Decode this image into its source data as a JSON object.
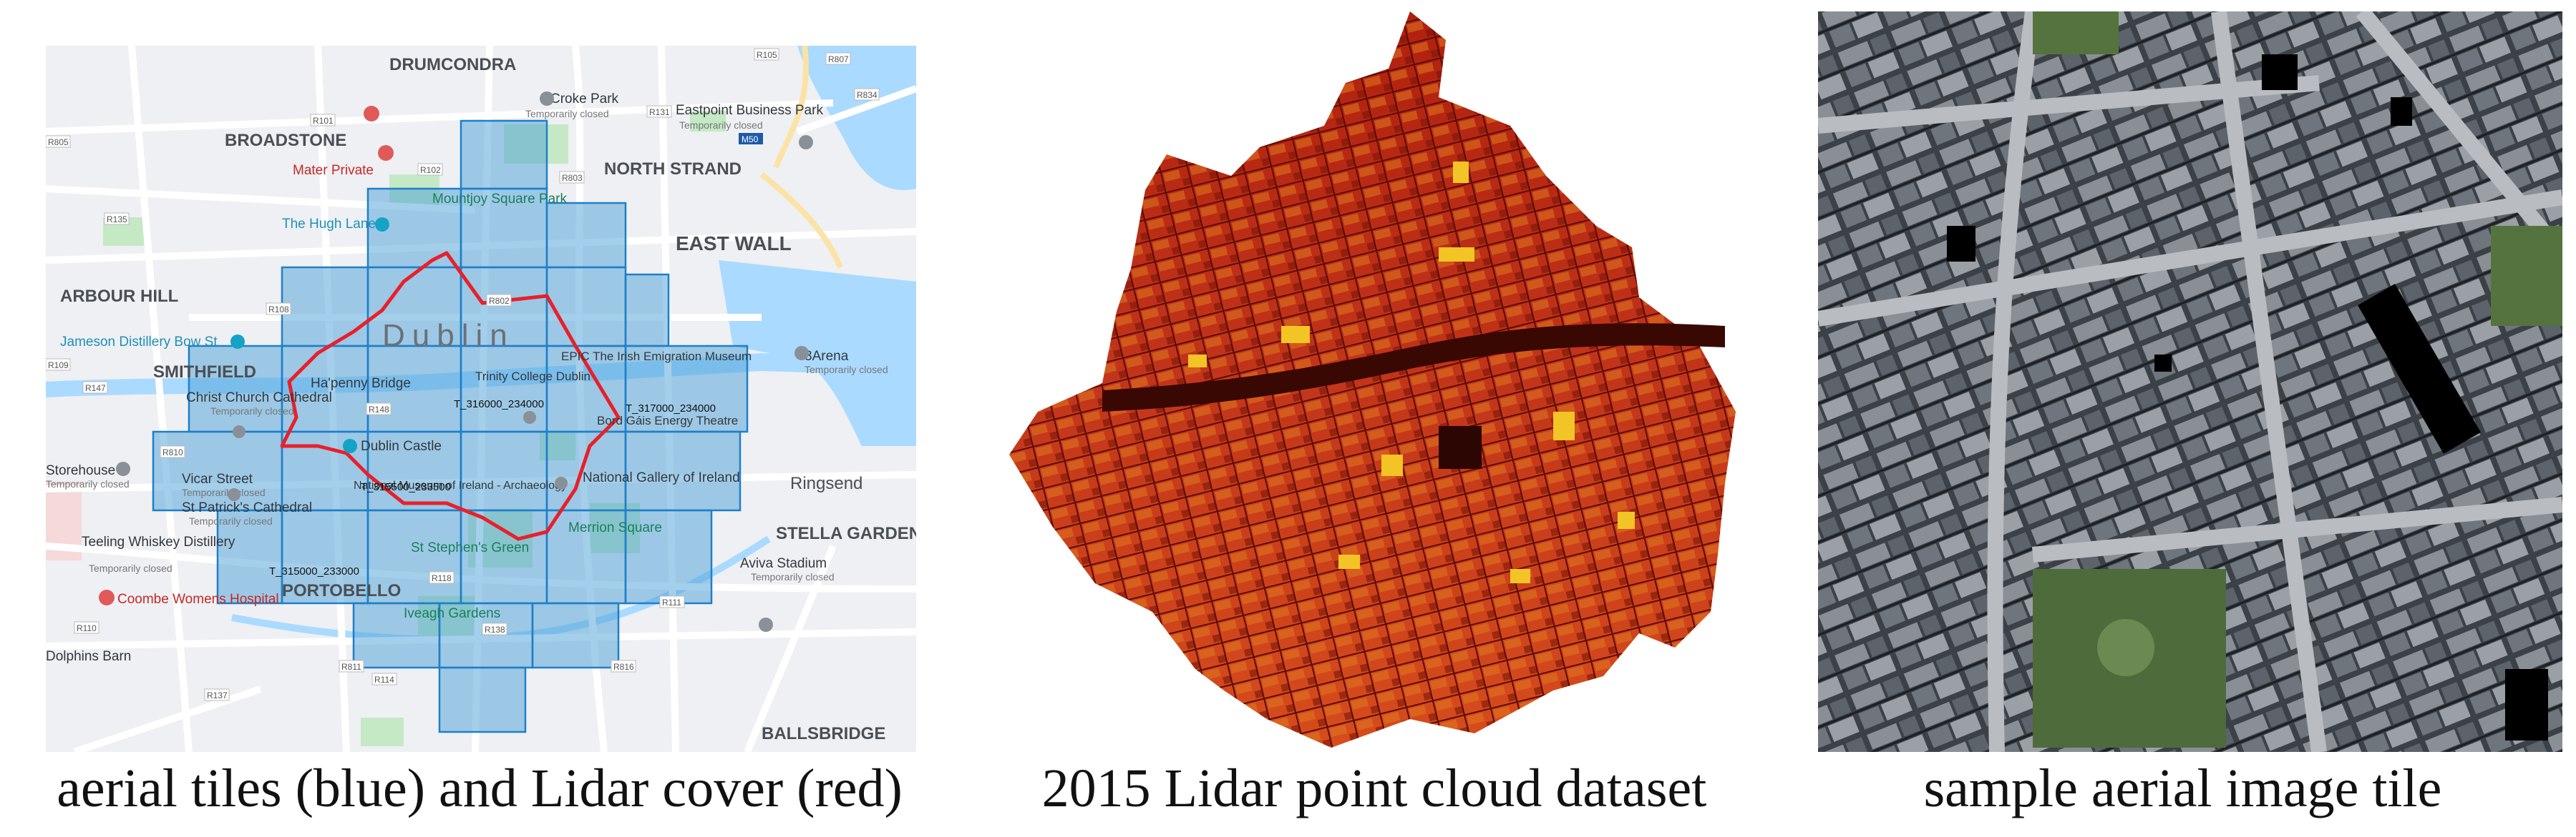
{
  "figure": {
    "captions": {
      "left": "aerial tiles (blue) and Lidar cover (red)",
      "middle": "2015 Lidar point cloud dataset",
      "right": "sample aerial image tile"
    }
  },
  "map": {
    "colors": {
      "land": "#eef0f3",
      "water": "#aadaff",
      "park": "#c5e8c5",
      "road": "#ffffff",
      "tile_fill": "#4a9fd8",
      "tile_stroke": "#1f7fc8",
      "lidar_outline": "#e8202a"
    },
    "districts": [
      {
        "label": "DRUMCONDRA"
      },
      {
        "label": "BROADSTONE"
      },
      {
        "label": "NORTH STRAND"
      },
      {
        "label": "EAST WALL"
      },
      {
        "label": "ARBOUR HILL"
      },
      {
        "label": "SMITHFIELD"
      },
      {
        "label": "STELLA GARDENS"
      },
      {
        "label": "PORTOBELLO"
      },
      {
        "label": "BALLSBRIDGE"
      },
      {
        "label": "Ringsend"
      },
      {
        "label": "Dublin"
      }
    ],
    "pois": [
      {
        "label": "Croke Park",
        "sub": "Temporarily closed"
      },
      {
        "label": "Eastpoint Business Park",
        "sub": "Temporarily closed"
      },
      {
        "label": "Mater Private"
      },
      {
        "label": "Mountjoy Square Park"
      },
      {
        "label": "The Hugh Lane"
      },
      {
        "label": "Jameson Distillery Bow St"
      },
      {
        "label": "Christ Church Cathedral",
        "sub": "Temporarily closed"
      },
      {
        "label": "Ha'penny Bridge"
      },
      {
        "label": "Dublin Castle"
      },
      {
        "label": "EPIC The Irish Emigration Museum"
      },
      {
        "label": "Trinity College Dublin"
      },
      {
        "label": "Bord Gáis Energy Theatre"
      },
      {
        "label": "3Arena",
        "sub": "Temporarily closed"
      },
      {
        "label": "Storehouse",
        "sub": "Temporarily closed"
      },
      {
        "label": "Vicar Street",
        "sub": "Temporarily closed"
      },
      {
        "label": "St Patrick's Cathedral",
        "sub": "Temporarily closed"
      },
      {
        "label": "National Museum of Ireland - Archaeology"
      },
      {
        "label": "National Gallery of Ireland"
      },
      {
        "label": "Merrion Square"
      },
      {
        "label": "St Stephen's Green"
      },
      {
        "label": "Teeling Whiskey Distillery",
        "sub": "Temporarily closed"
      },
      {
        "label": "Aviva Stadium",
        "sub": "Temporarily closed"
      },
      {
        "label": "Coombe Womens Hospital"
      },
      {
        "label": "Iveagh Gardens"
      },
      {
        "label": "Dolphins Barn"
      }
    ],
    "road_shields": [
      "R805",
      "R101",
      "R135",
      "R147",
      "R108",
      "R802",
      "R803",
      "R131",
      "R105",
      "R807",
      "R834",
      "M50",
      "R102",
      "R148",
      "R138",
      "R111",
      "R110",
      "R811",
      "R114",
      "R137",
      "R816",
      "R118",
      "R810",
      "R109"
    ],
    "tile_labels": [
      "T_316000_234000",
      "T_317000_234000",
      "T_315500_233500",
      "T_315000_233000"
    ]
  }
}
